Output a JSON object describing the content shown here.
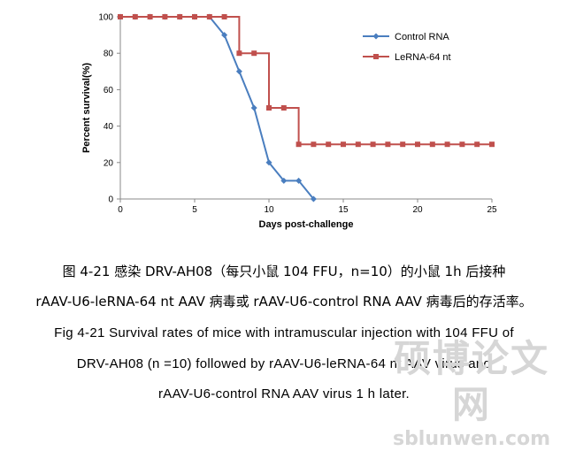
{
  "chart_data": {
    "type": "line",
    "title": "",
    "xlabel": "Days post-challenge",
    "ylabel": "Percent survival(%)",
    "xlim": [
      0,
      25
    ],
    "ylim": [
      0,
      100
    ],
    "xticks": [
      0,
      5,
      10,
      15,
      20,
      25
    ],
    "yticks": [
      0,
      20,
      40,
      60,
      80,
      100
    ],
    "grid": false,
    "legend_position": "top-right",
    "series": [
      {
        "name": "Control RNA",
        "color": "#4a7ebf",
        "marker": "diamond",
        "step": false,
        "x": [
          0,
          1,
          2,
          3,
          4,
          5,
          6,
          7,
          8,
          9,
          10,
          11,
          12,
          13
        ],
        "y": [
          100,
          100,
          100,
          100,
          100,
          100,
          100,
          90,
          70,
          50,
          20,
          10,
          10,
          0
        ]
      },
      {
        "name": "LeRNA-64 nt",
        "color": "#c0504d",
        "marker": "square",
        "step": true,
        "x": [
          0,
          1,
          2,
          3,
          4,
          5,
          6,
          7,
          8,
          9,
          10,
          11,
          12,
          13,
          14,
          15,
          16,
          17,
          18,
          19,
          20,
          21,
          22,
          23,
          24,
          25
        ],
        "y": [
          100,
          100,
          100,
          100,
          100,
          100,
          100,
          100,
          80,
          80,
          50,
          50,
          30,
          30,
          30,
          30,
          30,
          30,
          30,
          30,
          30,
          30,
          30,
          30,
          30,
          30
        ]
      }
    ]
  },
  "caption": {
    "zh_line1": "图 4-21  感染 DRV-AH08（每只小鼠 104 FFU，n=10）的小鼠 1h 后接种",
    "zh_line2": "rAAV-U6-leRNA-64 nt AAV 病毒或  rAAV-U6-control RNA AAV  病毒后的存活率。",
    "en_line1": "Fig 4-21 Survival rates of mice with intramuscular injection with 104 FFU of",
    "en_line2": "DRV-AH08 (n =10) followed by rAAV-U6-leRNA-64 nt AAV virus and",
    "en_line3": "rAAV-U6-control RNA AAV virus 1 h later."
  },
  "watermark": {
    "text": "硕博论文网",
    "url": "sblunwen.com"
  }
}
